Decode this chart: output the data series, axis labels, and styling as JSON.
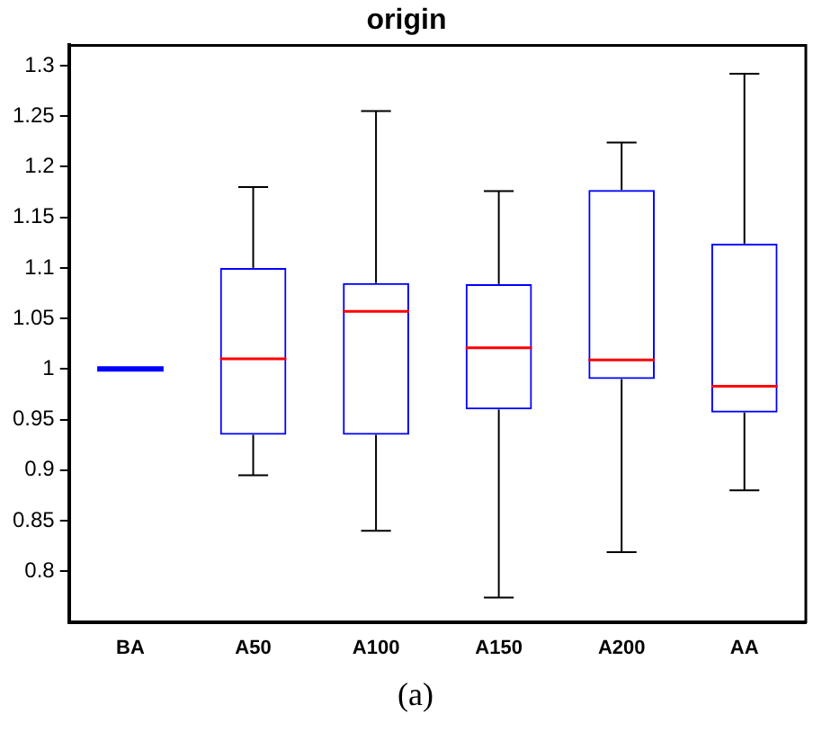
{
  "chart_data": {
    "type": "box",
    "title": "origin",
    "xlabel": "(a)",
    "categories": [
      "BA",
      "A50",
      "A100",
      "A150",
      "A200",
      "AA"
    ],
    "boxes": [
      {
        "low": 1,
        "q1": 1,
        "median": 1,
        "q3": 1,
        "high": 1
      },
      {
        "low": 0.895,
        "q1": 0.935,
        "median": 1.01,
        "q3": 1.1,
        "high": 1.18
      },
      {
        "low": 0.84,
        "q1": 0.935,
        "median": 1.057,
        "q3": 1.085,
        "high": 1.255
      },
      {
        "low": 0.774,
        "q1": 0.96,
        "median": 1.021,
        "q3": 1.084,
        "high": 1.176
      },
      {
        "low": 0.819,
        "q1": 0.99,
        "median": 1.009,
        "q3": 1.177,
        "high": 1.224
      },
      {
        "low": 0.88,
        "q1": 0.957,
        "median": 0.983,
        "q3": 1.124,
        "high": 1.292
      }
    ],
    "color": "#0000ff",
    "ylim": [
      0.75,
      1.32
    ],
    "yticks": [
      0.8,
      0.85,
      0.9,
      0.95,
      1,
      1.05,
      1.1,
      1.15,
      1.2,
      1.25,
      1.3
    ],
    "grid": false,
    "legend": false
  }
}
